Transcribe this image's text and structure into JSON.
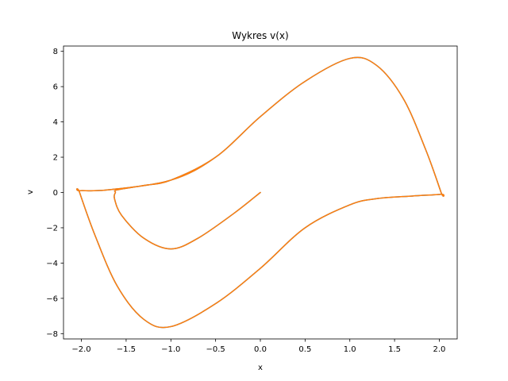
{
  "chart_data": {
    "type": "line",
    "title": "Wykres v(x)",
    "xlabel": "x",
    "ylabel": "v",
    "xlim": [
      -2.2,
      2.2
    ],
    "ylim": [
      -8.3,
      8.3
    ],
    "xticks": [
      -2.0,
      -1.5,
      -1.0,
      -0.5,
      0.0,
      0.5,
      1.0,
      1.5,
      2.0
    ],
    "xtick_labels": [
      "−2.0",
      "−1.5",
      "−1.0",
      "−0.5",
      "0.0",
      "0.5",
      "1.0",
      "1.5",
      "2.0"
    ],
    "yticks": [
      -8,
      -6,
      -4,
      -2,
      0,
      2,
      4,
      6,
      8
    ],
    "ytick_labels": [
      "−8",
      "−6",
      "−4",
      "−2",
      "0",
      "2",
      "4",
      "6",
      "8"
    ],
    "grid": false,
    "series": [
      {
        "color": "#1f77b4",
        "x": [
          0.0,
          -0.3,
          -0.7,
          -1.0,
          -1.3,
          -1.55,
          -1.63,
          -1.62,
          -1.6,
          -1.3,
          -1.0,
          -0.5,
          0.0,
          0.5,
          1.0,
          1.3,
          1.6,
          1.85,
          2.02,
          2.02,
          1.7,
          1.3,
          1.0,
          0.5,
          0.0,
          -0.5,
          -1.0,
          -1.3,
          -1.6,
          -1.85,
          -2.02,
          -2.02,
          -1.7,
          -1.0,
          -0.5,
          0.0,
          0.5,
          1.0,
          1.3,
          1.6,
          1.85,
          2.02
        ],
        "y": [
          0.0,
          -1.2,
          -2.6,
          -3.2,
          -2.6,
          -1.3,
          -0.35,
          0.0,
          0.15,
          0.4,
          0.7,
          2.0,
          4.3,
          6.3,
          7.6,
          7.2,
          5.3,
          2.4,
          0.0,
          -0.1,
          -0.2,
          -0.35,
          -0.7,
          -2.0,
          -4.3,
          -6.3,
          -7.6,
          -7.2,
          -5.3,
          -2.4,
          0.0,
          0.1,
          0.15,
          0.7,
          2.0,
          4.3,
          6.3,
          7.6,
          7.2,
          5.3,
          2.4,
          0.0
        ]
      },
      {
        "color": "#ff7f0e",
        "x": [
          0.0,
          -0.3,
          -0.7,
          -1.0,
          -1.3,
          -1.55,
          -1.63,
          -1.62,
          -1.6,
          -1.3,
          -1.0,
          -0.5,
          0.0,
          0.5,
          1.0,
          1.3,
          1.6,
          1.85,
          2.02,
          2.02,
          1.7,
          1.3,
          1.0,
          0.5,
          0.0,
          -0.5,
          -1.0,
          -1.3,
          -1.6,
          -1.85,
          -2.02,
          -2.02,
          -1.7,
          -1.0,
          -0.5,
          0.0,
          0.5,
          1.0,
          1.3,
          1.6,
          1.85,
          2.02
        ],
        "y": [
          0.0,
          -1.2,
          -2.6,
          -3.2,
          -2.6,
          -1.3,
          -0.35,
          0.0,
          0.15,
          0.4,
          0.7,
          2.0,
          4.3,
          6.3,
          7.6,
          7.2,
          5.3,
          2.4,
          0.0,
          -0.1,
          -0.2,
          -0.35,
          -0.7,
          -2.0,
          -4.3,
          -6.3,
          -7.6,
          -7.2,
          -5.3,
          -2.4,
          0.0,
          0.1,
          0.15,
          0.7,
          2.0,
          4.3,
          6.3,
          7.6,
          7.2,
          5.3,
          2.4,
          0.0
        ]
      }
    ]
  }
}
